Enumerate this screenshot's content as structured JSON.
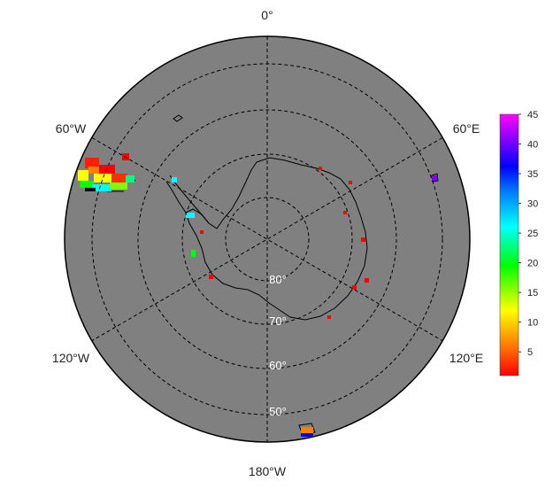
{
  "map": {
    "projection": "south-polar-stereographic",
    "background_color": "#808080",
    "land_outline_color": "#000000",
    "grid_style": "dashed",
    "longitude_labels": [
      "0°",
      "60°E",
      "120°E",
      "180°W",
      "120°W",
      "60°W"
    ],
    "latitude_labels": [
      "80°",
      "70°",
      "60°",
      "50°"
    ]
  },
  "colorbar": {
    "ticks": [
      5,
      10,
      15,
      20,
      25,
      30,
      35,
      40,
      45
    ],
    "range": [
      1,
      45
    ],
    "colors": [
      "#ff0000",
      "#ff8000",
      "#ffff00",
      "#00ff00",
      "#00ffff",
      "#0080ff",
      "#0000ff",
      "#8000ff",
      "#ff00ff"
    ]
  }
}
